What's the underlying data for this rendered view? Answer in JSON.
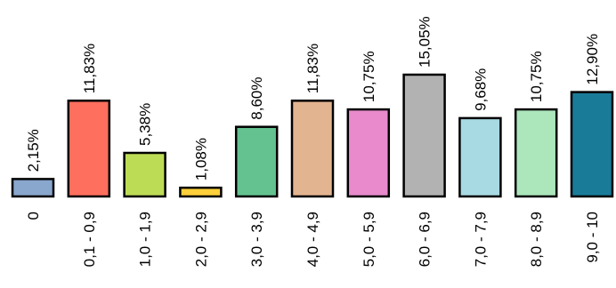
{
  "chart_data": {
    "type": "bar",
    "title": "",
    "xlabel": "",
    "ylabel": "",
    "ylim": [
      0,
      15.05
    ],
    "grid": false,
    "legend": "none",
    "categories": [
      "0",
      "0,1 - 0,9",
      "1,0 - 1,9",
      "2,0 - 2,9",
      "3,0 - 3,9",
      "4,0 - 4,9",
      "5,0 - 5,9",
      "6,0 - 6,9",
      "7,0 - 7,9",
      "8,0 - 8,9",
      "9,0 - 10"
    ],
    "values": [
      2.15,
      11.83,
      5.38,
      1.08,
      8.6,
      11.83,
      10.75,
      15.05,
      9.68,
      10.75,
      12.9
    ],
    "value_labels": [
      "2,15%",
      "11,83%",
      "5,38%",
      "1,08%",
      "8,60%",
      "11,83%",
      "10,75%",
      "15,05%",
      "9,68%",
      "10,75%",
      "12,90%"
    ],
    "colors": [
      "#89a6cc",
      "#ff6f5e",
      "#bddc55",
      "#ffd03a",
      "#63c28f",
      "#e3b490",
      "#e88acb",
      "#b2b2b2",
      "#a8dae3",
      "#ace6bb",
      "#1a7b99"
    ]
  }
}
